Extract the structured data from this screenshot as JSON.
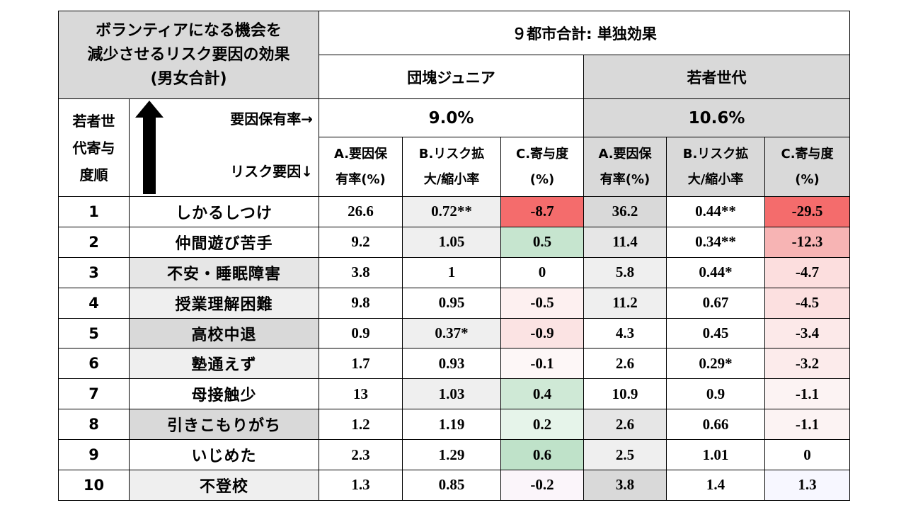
{
  "title_line1": "ボランティアになる機会を",
  "title_line2": "減少させるリスク要因の効果",
  "title_line3": "(男女合計)",
  "top_header": "９都市合計: 単独効果",
  "group1": {
    "name": "団塊ジュニア",
    "rate": "9.0%"
  },
  "group2": {
    "name": "若者世代",
    "rate": "10.6%"
  },
  "side_label": [
    "若者世",
    "代寄与",
    "度順"
  ],
  "label_rate": "要因保有率→",
  "label_risk": "リスク要因↓",
  "col_headers": [
    [
      "A.要因保",
      "有率(%)"
    ],
    [
      "B.リスク拡",
      "大/縮小率"
    ],
    [
      "C.寄与度",
      "(%)"
    ],
    [
      "A.要因保",
      "有率(%)"
    ],
    [
      "B.リスク拡",
      "大/縮小率"
    ],
    [
      "C.寄与度",
      "(%)"
    ]
  ],
  "rows": [
    {
      "rank": "1",
      "factor": "しかるしつけ",
      "a1": "26.6",
      "b1": "0.72**",
      "c1": "-8.7",
      "a2": "36.2",
      "b2": "0.44**",
      "c2": "-29.5"
    },
    {
      "rank": "2",
      "factor": "仲間遊び苦手",
      "a1": "9.2",
      "b1": "1.05",
      "c1": "0.5",
      "a2": "11.4",
      "b2": "0.34**",
      "c2": "-12.3"
    },
    {
      "rank": "3",
      "factor": "不安・睡眠障害",
      "a1": "3.8",
      "b1": "1",
      "c1": "0",
      "a2": "5.8",
      "b2": "0.44*",
      "c2": "-4.7"
    },
    {
      "rank": "4",
      "factor": "授業理解困難",
      "a1": "9.8",
      "b1": "0.95",
      "c1": "-0.5",
      "a2": "11.2",
      "b2": "0.67",
      "c2": "-4.5"
    },
    {
      "rank": "5",
      "factor": "高校中退",
      "a1": "0.9",
      "b1": "0.37*",
      "c1": "-0.9",
      "a2": "4.3",
      "b2": "0.45",
      "c2": "-3.4"
    },
    {
      "rank": "6",
      "factor": "塾通えず",
      "a1": "1.7",
      "b1": "0.93",
      "c1": "-0.1",
      "a2": "2.6",
      "b2": "0.29*",
      "c2": "-3.2"
    },
    {
      "rank": "7",
      "factor": "母接触少",
      "a1": "13",
      "b1": "1.03",
      "c1": "0.4",
      "a2": "10.9",
      "b2": "0.9",
      "c2": "-1.1"
    },
    {
      "rank": "8",
      "factor": "引きこもりがち",
      "a1": "1.2",
      "b1": "1.19",
      "c1": "0.2",
      "a2": "2.6",
      "b2": "0.66",
      "c2": "-1.1"
    },
    {
      "rank": "9",
      "factor": "いじめた",
      "a1": "2.3",
      "b1": "1.29",
      "c1": "0.6",
      "a2": "2.5",
      "b2": "1.01",
      "c2": "0"
    },
    {
      "rank": "10",
      "factor": "不登校",
      "a1": "1.3",
      "b1": "0.85",
      "c1": "-0.2",
      "a2": "3.8",
      "b2": "1.4",
      "c2": "1.3"
    }
  ],
  "row_styles": {
    "factor_bg": [
      "#ffffff",
      "#ffffff",
      "#e6e6e6",
      "#efefef",
      "#d9d9d9",
      "#efefef",
      "#ffffff",
      "#d9d9d9",
      "#ffffff",
      "#efefef"
    ],
    "b1_bg": [
      "#efefef",
      "#efefef",
      "#ffffff",
      "#ffffff",
      "#efefef",
      "#ffffff",
      "#efefef",
      "#ffffff",
      "#ffffff",
      "#ffffff"
    ],
    "a2_bg": [
      "#d9d9d9",
      "#e6e6e6",
      "#efefef",
      "#efefef",
      "#ffffff",
      "#ffffff",
      "#ffffff",
      "#e6e6e6",
      "#efefef",
      "#d9d9d9"
    ],
    "c1_bg": [
      "#f46c6c",
      "#c6e5cf",
      "#ffffff",
      "#fdf0f0",
      "#fbe3e3",
      "#fdf7f7",
      "#cfe9d6",
      "#e6f4ea",
      "#bfe2c9",
      "#fbf5fa"
    ],
    "c2_bg": [
      "#f46c6c",
      "#f7b4b4",
      "#fcdede",
      "#fce0e0",
      "#fce9e9",
      "#fcebeb",
      "#fcf3f3",
      "#fcf3f3",
      "#ffffff",
      "#f7f7ff"
    ]
  }
}
